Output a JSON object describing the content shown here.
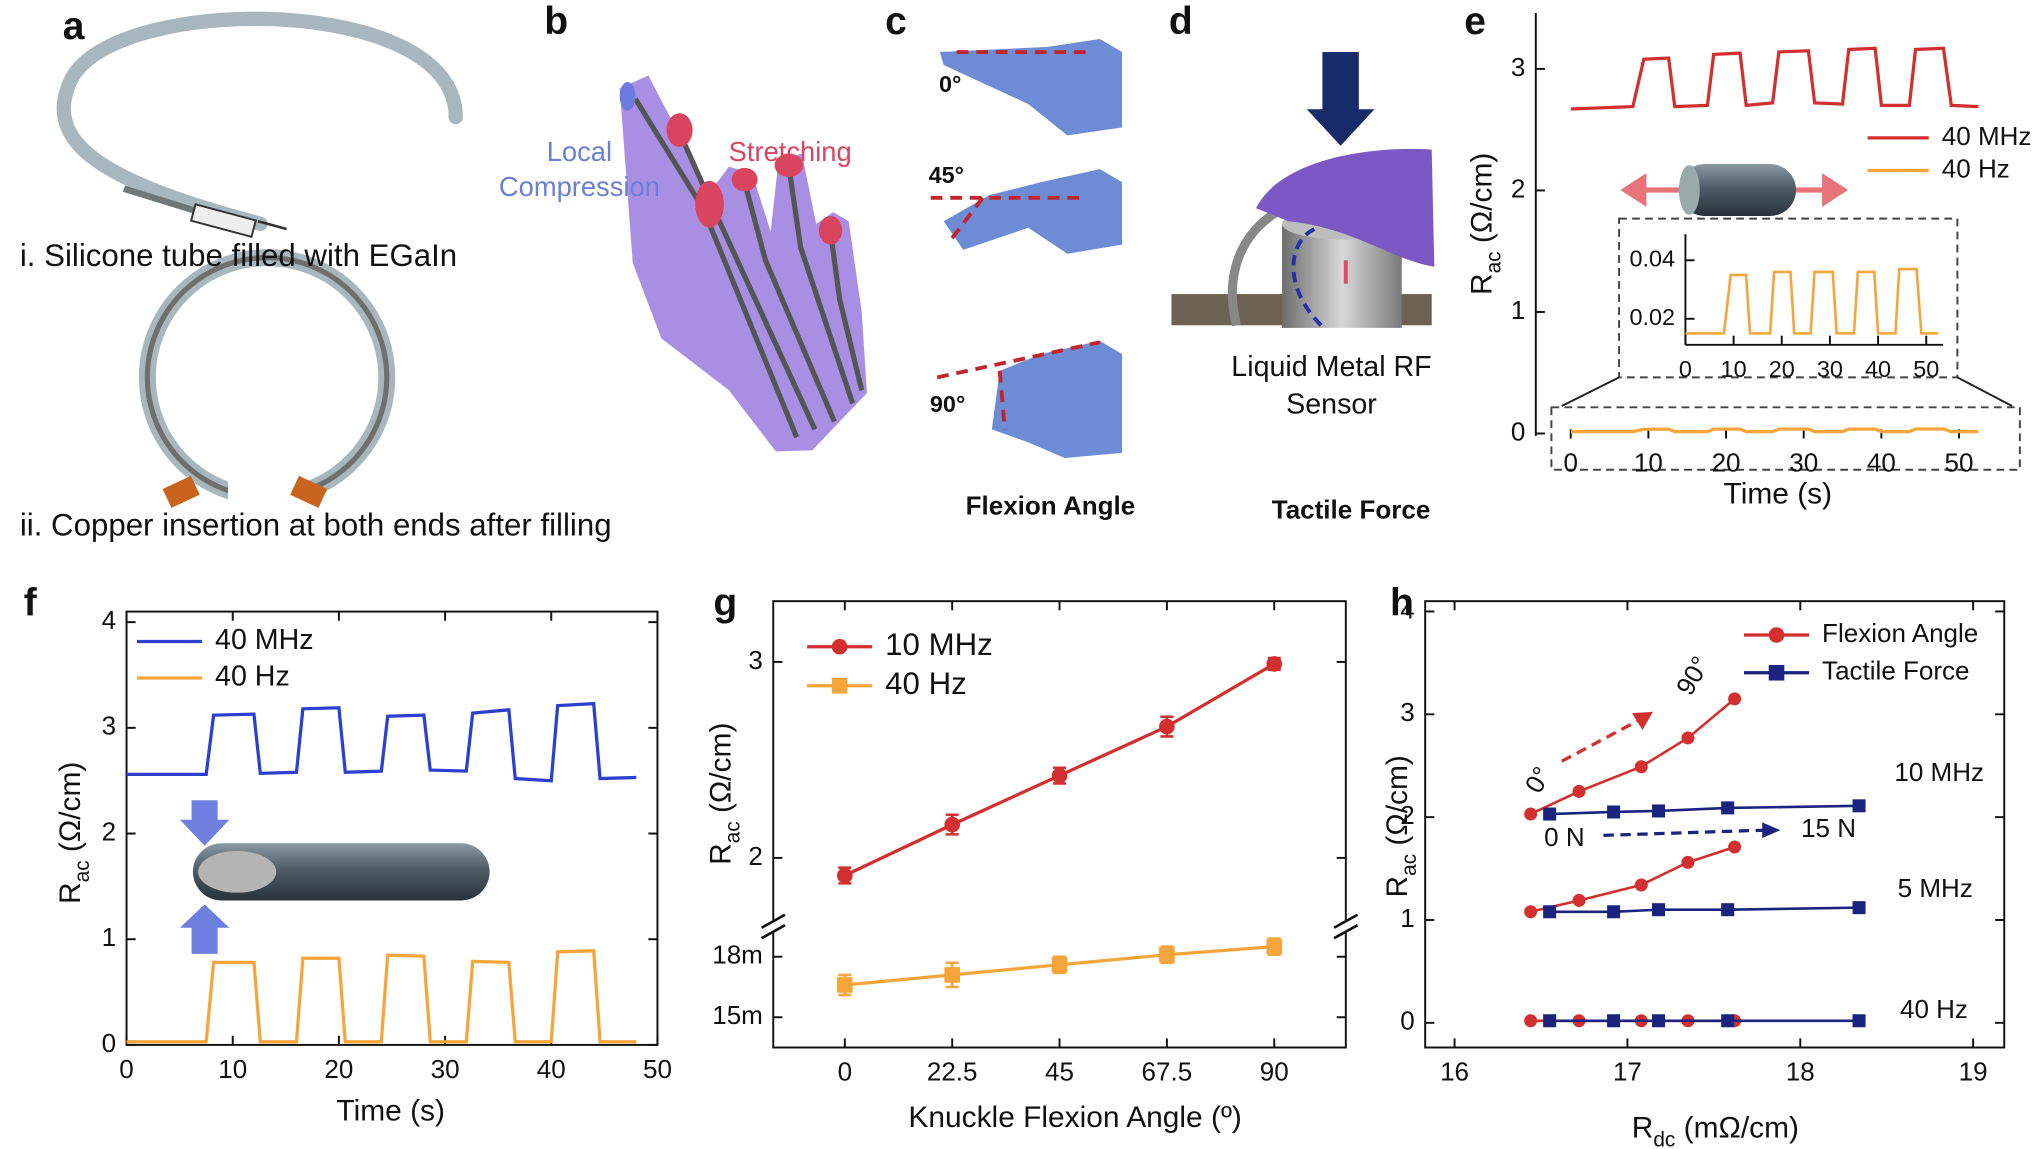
{
  "illustrations": {
    "a": {
      "label": "a",
      "captions": [
        "i. Silicone tube filled with EGaIn",
        "ii. Copper insertion at both ends after filling"
      ]
    },
    "b": {
      "label": "b",
      "compression": [
        "Local",
        "Compression"
      ],
      "stretching": "Stretching"
    },
    "c": {
      "label": "c",
      "angles": [
        "0°",
        "45°",
        "90°"
      ],
      "caption": "Flexion Angle"
    },
    "d": {
      "label": "d",
      "sensor": [
        "Liquid Metal RF",
        "Sensor"
      ],
      "caption": "Tactile Force"
    }
  },
  "chart_data": [
    {
      "panel": "e",
      "type": "line",
      "ylabel": [
        "R",
        "ac",
        " (Ω/cm)"
      ],
      "xlabel": "Time (s)",
      "xlim": [
        -4.5,
        58
      ],
      "xticks": [
        0,
        10,
        20,
        30,
        40,
        50
      ],
      "ylim": [
        -0.02,
        3.46
      ],
      "yticks": [
        0,
        1,
        2,
        3
      ],
      "x": [
        0,
        8,
        9.4,
        12.6,
        13.4,
        17.6,
        18.4,
        21.8,
        22.6,
        26,
        26.8,
        30.6,
        31.4,
        35,
        35.8,
        39.2,
        40,
        43.6,
        44.4,
        48,
        49,
        52.5
      ],
      "series": [
        {
          "name": "40 MHz",
          "color": "#d32f2f",
          "values": [
            2.67,
            2.69,
            3.08,
            3.09,
            2.69,
            2.7,
            3.12,
            3.13,
            2.7,
            2.72,
            3.14,
            3.15,
            2.72,
            2.71,
            3.16,
            3.17,
            2.7,
            2.7,
            3.16,
            3.17,
            2.7,
            2.69
          ]
        },
        {
          "name": "40 Hz",
          "color": "#f6a53a",
          "values": [
            0.015,
            0.015,
            0.035,
            0.035,
            0.015,
            0.015,
            0.036,
            0.036,
            0.015,
            0.015,
            0.036,
            0.036,
            0.015,
            0.015,
            0.036,
            0.036,
            0.015,
            0.015,
            0.037,
            0.037,
            0.015,
            0.015
          ]
        }
      ],
      "inset": {
        "xlim": [
          0,
          53.5
        ],
        "xticks": [
          0,
          10,
          20,
          30,
          40,
          50
        ],
        "ylim": [
          0.0111,
          0.0489
        ],
        "yticks": [
          0.02,
          0.04
        ]
      }
    },
    {
      "panel": "f",
      "type": "line",
      "ylabel": [
        "R",
        "ac",
        " (Ω/cm)"
      ],
      "xlabel": "Time (s)",
      "xlim": [
        0,
        50
      ],
      "xticks": [
        0,
        10,
        20,
        30,
        40,
        50
      ],
      "ylim": [
        0,
        4.1
      ],
      "yticks": [
        0,
        1,
        2,
        3,
        4
      ],
      "x": [
        0,
        7.5,
        8.2,
        12,
        12.6,
        16,
        16.6,
        20,
        20.6,
        24,
        24.6,
        28,
        28.6,
        32,
        32.6,
        36,
        36.6,
        40,
        40.6,
        44,
        44.6,
        48
      ],
      "series": [
        {
          "name": "40 MHz",
          "color": "#2b3fd0",
          "values": [
            2.56,
            2.56,
            3.12,
            3.13,
            2.57,
            2.58,
            3.18,
            3.19,
            2.58,
            2.59,
            3.11,
            3.12,
            2.6,
            2.59,
            3.14,
            3.17,
            2.52,
            2.5,
            3.21,
            3.23,
            2.52,
            2.53
          ]
        },
        {
          "name": "40 Hz",
          "color": "#f6a53a",
          "values": [
            0.03,
            0.03,
            0.78,
            0.78,
            0.03,
            0.03,
            0.82,
            0.82,
            0.03,
            0.03,
            0.85,
            0.84,
            0.03,
            0.03,
            0.79,
            0.78,
            0.03,
            0.03,
            0.88,
            0.89,
            0.03,
            0.03
          ]
        }
      ]
    },
    {
      "panel": "g",
      "type": "errorbar",
      "ylabel": [
        "R",
        "ac",
        " (Ω/cm)"
      ],
      "xlabel": "Knuckle Flexion Angle (º)",
      "xlim": [
        -15,
        105
      ],
      "xticks": [
        0,
        22.5,
        45,
        67.5,
        90
      ],
      "x": [
        0,
        22.5,
        45,
        67.5,
        90
      ],
      "ylim": [
        1.65,
        3.31
      ],
      "yticks": [
        2,
        3
      ],
      "ylim_low": [
        0.0135,
        0.0195
      ],
      "yticks_low": [
        {
          "value": 0.015,
          "label": "15m"
        },
        {
          "value": 0.018,
          "label": "18m"
        }
      ],
      "series": [
        {
          "name": "10 MHz",
          "color": "#d32f2f",
          "marker": "circle",
          "values": [
            1.91,
            2.17,
            2.42,
            2.67,
            2.99
          ],
          "errors": [
            0.04,
            0.05,
            0.04,
            0.05,
            0.03
          ]
        },
        {
          "name": "40 Hz",
          "color": "#f6a53a",
          "marker": "square",
          "axis": "low",
          "values": [
            0.0166,
            0.0171,
            0.0176,
            0.0181,
            0.0185
          ],
          "errors": [
            0.0005,
            0.0006,
            0.0004,
            0.0004,
            0.0004
          ]
        }
      ]
    },
    {
      "panel": "h",
      "type": "scatter",
      "ylabel": [
        "R",
        "ac",
        " (Ω/cm)"
      ],
      "xlabel": [
        "R",
        "dc",
        " (mΩ/cm)"
      ],
      "xlim": [
        15.83,
        19.18
      ],
      "xticks": [
        16,
        17,
        18,
        19
      ],
      "ylim": [
        -0.24,
        4.1
      ],
      "yticks": [
        0,
        1,
        2,
        3,
        4
      ],
      "series": [
        {
          "name": "Flexion Angle",
          "color": "#d32f2f",
          "marker": "circle",
          "x": [
            16.44,
            16.72,
            17.08,
            17.35,
            17.62
          ],
          "curves": [
            [
              2.03,
              2.25,
              2.49,
              2.77,
              3.15
            ],
            [
              1.08,
              1.19,
              1.34,
              1.56,
              1.71
            ],
            [
              0.02,
              0.02,
              0.02,
              0.02,
              0.02
            ]
          ]
        },
        {
          "name": "Tactile Force",
          "color": "#1a237e",
          "marker": "square",
          "x": [
            16.55,
            16.92,
            17.18,
            17.58,
            18.34
          ],
          "curves": [
            [
              2.03,
              2.05,
              2.06,
              2.09,
              2.11
            ],
            [
              1.08,
              1.08,
              1.1,
              1.1,
              1.12
            ],
            [
              0.02,
              0.02,
              0.02,
              0.02,
              0.02
            ]
          ]
        }
      ],
      "annotations": [
        "10 MHz",
        "5 MHz",
        "40 Hz",
        "0°",
        "90°",
        "0 N",
        "15 N"
      ]
    }
  ]
}
